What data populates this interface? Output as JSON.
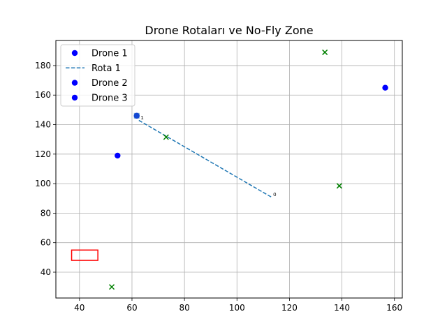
{
  "chart_data": {
    "type": "scatter",
    "title": "Drone Rotaları ve No-Fly Zone",
    "xlabel": "",
    "ylabel": "",
    "xlim": [
      31,
      163
    ],
    "ylim": [
      22.5,
      197
    ],
    "xticks": [
      40,
      60,
      80,
      100,
      120,
      140,
      160
    ],
    "yticks": [
      40,
      60,
      80,
      100,
      120,
      140,
      160,
      180
    ],
    "grid": true,
    "legend_position": "top-left",
    "series": [
      {
        "name": "Drone 1",
        "kind": "point",
        "color": "#0000ff",
        "marker": "circle",
        "points": [
          [
            61.8,
            146
          ]
        ]
      },
      {
        "name": "Rota 1",
        "kind": "line",
        "color": "#1f77b4",
        "style": "dashed",
        "points": [
          [
            113,
            91
          ],
          [
            62.5,
            143
          ]
        ]
      },
      {
        "name": "Drone 2",
        "kind": "point",
        "color": "#0000ff",
        "marker": "circle",
        "points": [
          [
            54.5,
            119
          ]
        ]
      },
      {
        "name": "Drone 3",
        "kind": "point",
        "color": "#0000ff",
        "marker": "circle",
        "points": [
          [
            156.5,
            165
          ]
        ]
      }
    ],
    "waypoints": {
      "color": "#008000",
      "marker": "x",
      "points": [
        [
          133.5,
          189
        ],
        [
          73,
          131.5
        ],
        [
          139,
          98.5
        ],
        [
          52.3,
          30
        ]
      ]
    },
    "route_labels": [
      {
        "text": "0",
        "x": 113,
        "y": 91
      },
      {
        "text": "1",
        "x": 62.5,
        "y": 143
      }
    ],
    "no_fly_zone": {
      "color": "#ff0000",
      "x": [
        37,
        47
      ],
      "y": [
        48,
        55
      ]
    }
  }
}
